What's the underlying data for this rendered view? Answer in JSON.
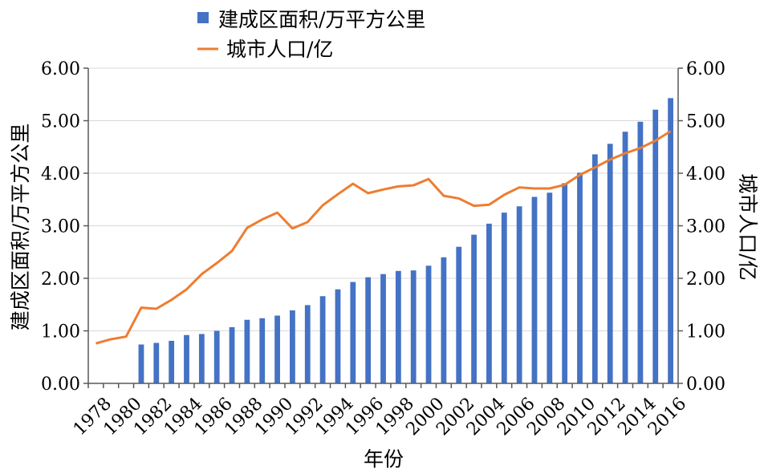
{
  "chart_data": {
    "type": "bar",
    "title": "",
    "xlabel": "年份",
    "ylabel_left": "建成区面积/万平方公里",
    "ylabel_right": "城市人口/亿",
    "ylim": [
      0,
      6
    ],
    "y_ticks": [
      "0.00",
      "1.00",
      "2.00",
      "3.00",
      "4.00",
      "5.00",
      "6.00"
    ],
    "grid": true,
    "legend_position": "top",
    "categories": [
      1978,
      1979,
      1980,
      1981,
      1982,
      1983,
      1984,
      1985,
      1986,
      1987,
      1988,
      1989,
      1990,
      1991,
      1992,
      1993,
      1994,
      1995,
      1996,
      1997,
      1998,
      1999,
      2000,
      2001,
      2002,
      2003,
      2004,
      2005,
      2006,
      2007,
      2008,
      2009,
      2010,
      2011,
      2012,
      2013,
      2014,
      2015,
      2016
    ],
    "x_tick_labels": [
      "1978",
      "1980",
      "1982",
      "1984",
      "1986",
      "1988",
      "1990",
      "1992",
      "1994",
      "1996",
      "1998",
      "2000",
      "2002",
      "2004",
      "2006",
      "2008",
      "2010",
      "2012",
      "2014",
      "2016"
    ],
    "series": [
      {
        "name": "建成区面积/万平方公里",
        "type": "bar",
        "axis": "left",
        "color": "#4472C4",
        "values": [
          null,
          null,
          null,
          0.74,
          0.77,
          0.81,
          0.92,
          0.94,
          1.0,
          1.07,
          1.21,
          1.24,
          1.29,
          1.39,
          1.49,
          1.66,
          1.79,
          1.93,
          2.02,
          2.08,
          2.14,
          2.15,
          2.24,
          2.4,
          2.6,
          2.83,
          3.04,
          3.25,
          3.37,
          3.55,
          3.63,
          3.81,
          4.01,
          4.36,
          4.56,
          4.79,
          4.98,
          5.21,
          5.43
        ]
      },
      {
        "name": "城市人口/亿",
        "type": "line",
        "axis": "right",
        "color": "#ED7D31",
        "values": [
          0.76,
          0.84,
          0.89,
          1.44,
          1.42,
          1.59,
          1.79,
          2.08,
          2.29,
          2.52,
          2.96,
          3.12,
          3.25,
          2.95,
          3.07,
          3.39,
          3.6,
          3.8,
          3.62,
          3.69,
          3.75,
          3.77,
          3.89,
          3.57,
          3.52,
          3.38,
          3.4,
          3.59,
          3.73,
          3.71,
          3.71,
          3.78,
          3.97,
          4.11,
          4.26,
          4.38,
          4.48,
          4.62,
          4.8
        ]
      }
    ]
  }
}
